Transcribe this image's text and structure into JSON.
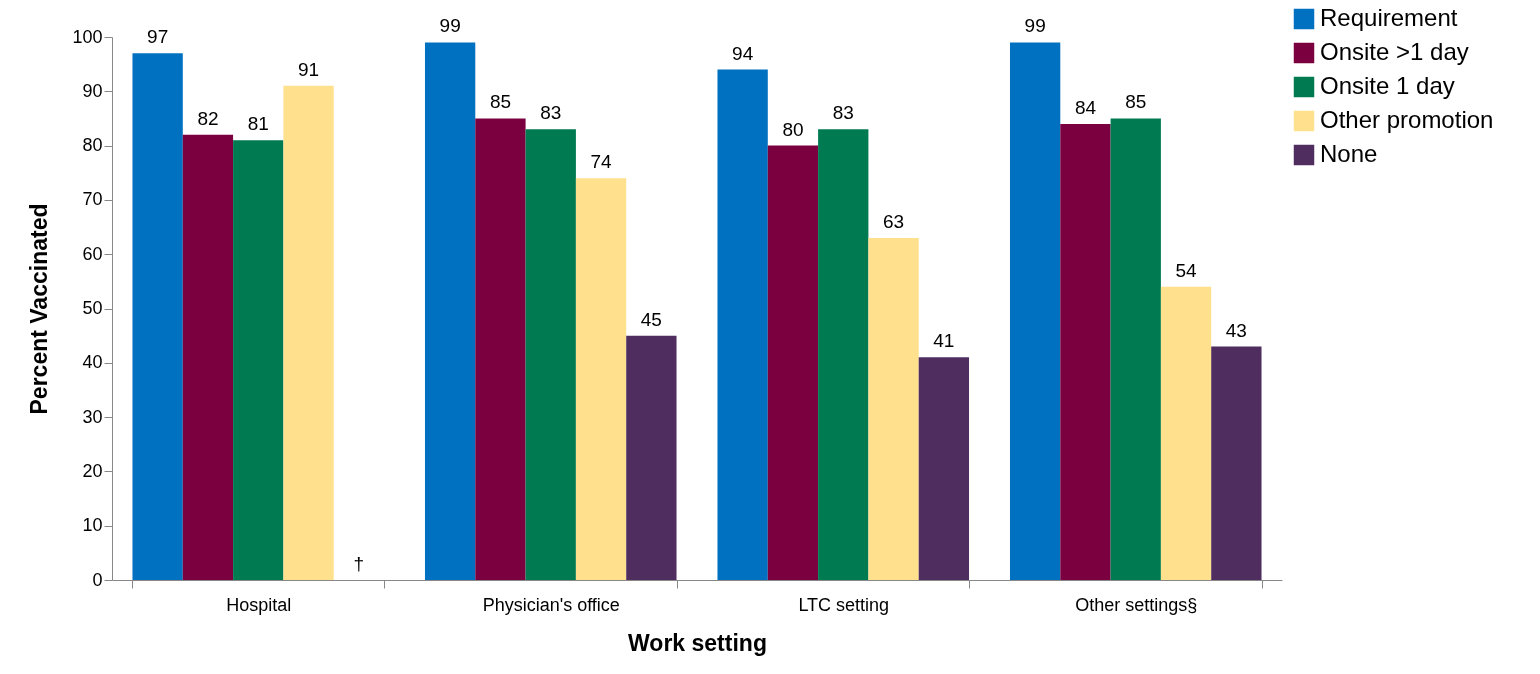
{
  "chart_data": {
    "type": "bar",
    "xlabel": "Work setting",
    "ylabel": "Percent Vaccinated",
    "categories": [
      "Hospital",
      "Physician's office",
      "LTC setting",
      "Other settings§"
    ],
    "series": [
      {
        "name": "Requirement",
        "color": "#0070c0",
        "values": [
          97,
          99,
          94,
          99
        ]
      },
      {
        "name": "Onsite >1 day",
        "color": "#7a0040",
        "values": [
          82,
          85,
          80,
          84
        ]
      },
      {
        "name": "Onsite 1 day",
        "color": "#007a50",
        "values": [
          81,
          83,
          83,
          85
        ]
      },
      {
        "name": "Other promotion",
        "color": "#ffe08c",
        "values": [
          91,
          74,
          63,
          54
        ]
      },
      {
        "name": "None",
        "color": "#4f2d5f",
        "values": [
          null,
          45,
          41,
          43
        ],
        "value_labels": [
          "†",
          "45",
          "41",
          "43"
        ]
      }
    ],
    "ylim": [
      0,
      100
    ],
    "yticks": [
      0,
      10,
      20,
      30,
      40,
      50,
      60,
      70,
      80,
      90,
      100
    ],
    "grid": false,
    "legend": "top right",
    "data_labels": true
  }
}
